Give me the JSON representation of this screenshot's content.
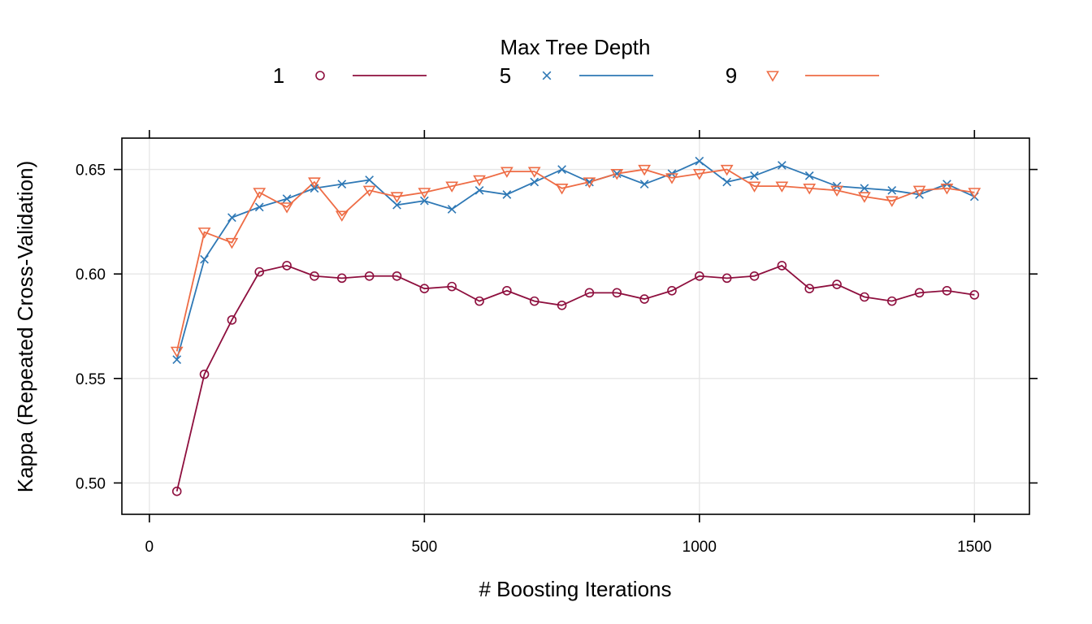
{
  "chart_data": {
    "type": "line",
    "title": "",
    "xlabel": "# Boosting Iterations",
    "ylabel": "Kappa (Repeated Cross-Validation)",
    "xlim": [
      -50,
      1600
    ],
    "ylim": [
      0.485,
      0.665
    ],
    "xticks": [
      0,
      500,
      1000,
      1500
    ],
    "xtick_labels": [
      "0",
      "500",
      "1000",
      "1500"
    ],
    "yticks": [
      0.5,
      0.55,
      0.6,
      0.65
    ],
    "ytick_labels": [
      "0.50",
      "0.55",
      "0.60",
      "0.65"
    ],
    "grid": true,
    "legend": {
      "title": "Max Tree Depth",
      "placement": "top"
    },
    "x": [
      50,
      100,
      150,
      200,
      250,
      300,
      350,
      400,
      450,
      500,
      550,
      600,
      650,
      700,
      750,
      800,
      850,
      900,
      950,
      1000,
      1050,
      1100,
      1150,
      1200,
      1250,
      1300,
      1350,
      1400,
      1450,
      1500
    ],
    "series": [
      {
        "name": "1",
        "marker": "circle",
        "color": "#8E0F3E",
        "values": [
          0.496,
          0.552,
          0.578,
          0.601,
          0.604,
          0.599,
          0.598,
          0.599,
          0.599,
          0.593,
          0.594,
          0.587,
          0.592,
          0.587,
          0.585,
          0.591,
          0.591,
          0.588,
          0.592,
          0.599,
          0.598,
          0.599,
          0.604,
          0.593,
          0.595,
          0.589,
          0.587,
          0.591,
          0.592,
          0.59
        ]
      },
      {
        "name": "5",
        "marker": "x",
        "color": "#2E78B5",
        "values": [
          0.559,
          0.607,
          0.627,
          0.632,
          0.636,
          0.641,
          0.643,
          0.645,
          0.633,
          0.635,
          0.631,
          0.64,
          0.638,
          0.644,
          0.65,
          0.644,
          0.648,
          0.643,
          0.648,
          0.654,
          0.644,
          0.647,
          0.652,
          0.647,
          0.642,
          0.641,
          0.64,
          0.638,
          0.643,
          0.637
        ]
      },
      {
        "name": "9",
        "marker": "triangle-down",
        "color": "#EE6C45",
        "values": [
          0.563,
          0.62,
          0.615,
          0.639,
          0.632,
          0.644,
          0.628,
          0.64,
          0.637,
          0.639,
          0.642,
          0.645,
          0.649,
          0.649,
          0.641,
          0.644,
          0.648,
          0.65,
          0.646,
          0.648,
          0.65,
          0.642,
          0.642,
          0.641,
          0.64,
          0.637,
          0.635,
          0.64,
          0.641,
          0.639
        ]
      }
    ]
  }
}
